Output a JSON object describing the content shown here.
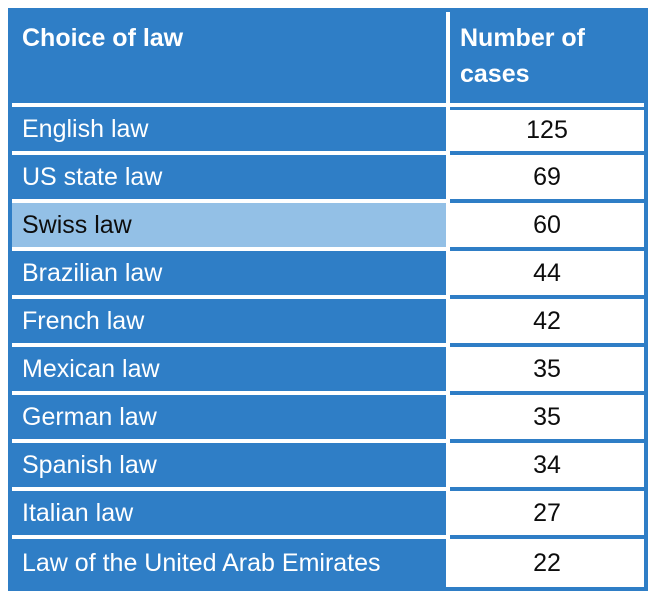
{
  "colors": {
    "primary_blue": "#2F7EC6",
    "highlight_row_blue": "#93C0E6",
    "header_text": "#ffffff",
    "number_text": "#0d0d0d"
  },
  "table": {
    "columns": [
      {
        "label": "Choice of law"
      },
      {
        "label": "Number of cases"
      }
    ],
    "rows": [
      {
        "label": "English law",
        "value": 125,
        "highlight": false
      },
      {
        "label": "US state law",
        "value": 69,
        "highlight": false
      },
      {
        "label": "Swiss law",
        "value": 60,
        "highlight": true
      },
      {
        "label": "Brazilian law",
        "value": 44,
        "highlight": false
      },
      {
        "label": "French law",
        "value": 42,
        "highlight": false
      },
      {
        "label": "Mexican law",
        "value": 35,
        "highlight": false
      },
      {
        "label": "German law",
        "value": 35,
        "highlight": false
      },
      {
        "label": "Spanish law",
        "value": 34,
        "highlight": false
      },
      {
        "label": "Italian law",
        "value": 27,
        "highlight": false
      },
      {
        "label": "Law of the United Arab Emirates",
        "value": 22,
        "highlight": false
      }
    ]
  },
  "chart_data": {
    "type": "table",
    "columns": [
      "Choice of law",
      "Number of cases"
    ],
    "categories": [
      "English law",
      "US state law",
      "Swiss law",
      "Brazilian law",
      "French law",
      "Mexican law",
      "German law",
      "Spanish law",
      "Italian law",
      "Law of the United Arab Emirates"
    ],
    "values": [
      125,
      69,
      60,
      44,
      42,
      35,
      35,
      34,
      27,
      22
    ],
    "highlighted_row": "Swiss law"
  }
}
